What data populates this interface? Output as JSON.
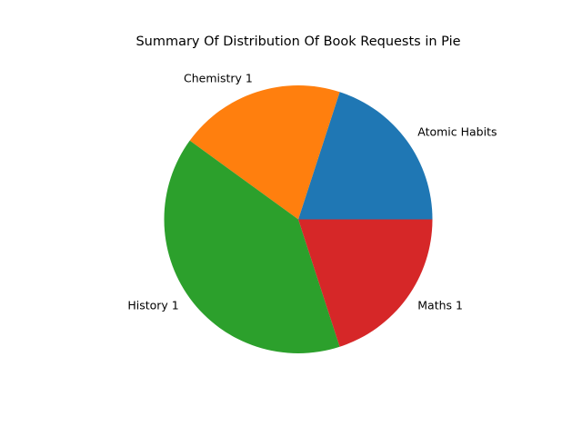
{
  "chart_data": {
    "type": "pie",
    "title": "Summary Of Distribution Of Book Requests in Pie",
    "labels": [
      "Atomic Habits",
      "Chemistry 1",
      "History 1",
      "Maths 1"
    ],
    "values": [
      1,
      1,
      2,
      1
    ],
    "colors": [
      "#1f77b4",
      "#ff7f0e",
      "#2ca02c",
      "#d62728"
    ],
    "start_angle_deg": 0,
    "direction": "counterclockwise",
    "legend": "none"
  }
}
